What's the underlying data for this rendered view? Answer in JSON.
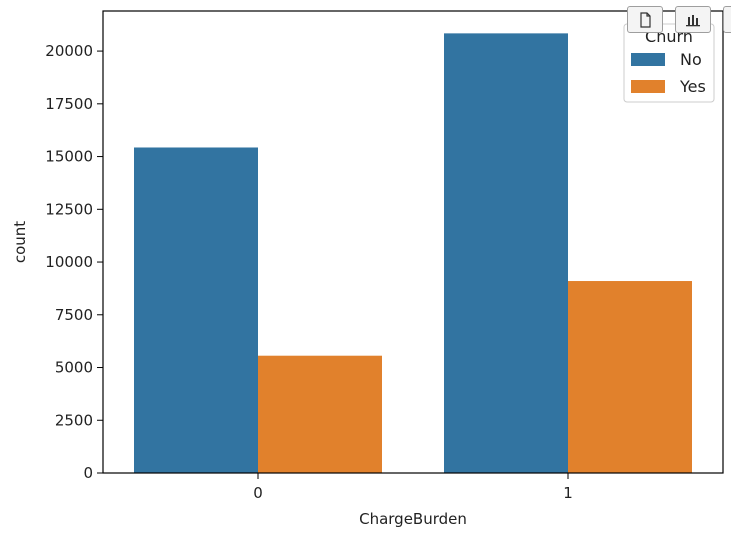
{
  "colors": {
    "no": "#3274a1",
    "yes": "#e1812c"
  },
  "toolbar": {
    "copy_icon": "copy-icon",
    "chart_icon": "bar-chart-icon"
  },
  "chart_data": {
    "type": "bar",
    "categories": [
      "0",
      "1"
    ],
    "series": [
      {
        "name": "No",
        "values": [
          15430,
          20840
        ]
      },
      {
        "name": "Yes",
        "values": [
          5560,
          9100
        ]
      }
    ],
    "xlabel": "ChargeBurden",
    "ylabel": "count",
    "ylim": [
      0,
      21900
    ],
    "yticks": [
      0,
      2500,
      5000,
      7500,
      10000,
      12500,
      15000,
      17500,
      20000
    ],
    "legend": {
      "title": "Churn",
      "position": "top-right"
    }
  }
}
